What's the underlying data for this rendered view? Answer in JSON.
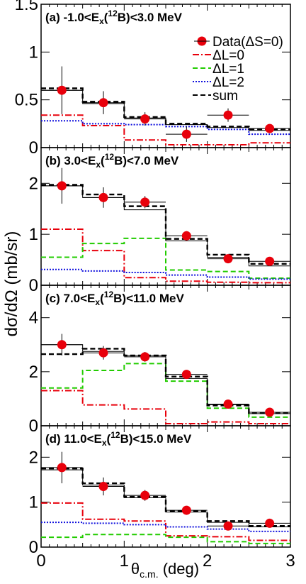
{
  "figure": {
    "ylabel": "dσ/dΩ (mb/sr)",
    "xlabel_main": "θ",
    "xlabel_sub": "c.m.",
    "xlabel_unit": " (deg)",
    "xticks": [
      "0",
      "1",
      "2",
      "3"
    ]
  },
  "legend": {
    "entries": [
      {
        "key": "data",
        "label": "Data(ΔS=0)",
        "color": "#e8000b"
      },
      {
        "key": "L0",
        "label": "ΔL=0",
        "color": "#e8000b"
      },
      {
        "key": "L1",
        "label": "ΔL=1",
        "color": "#22cc00"
      },
      {
        "key": "L2",
        "label": "ΔL=2",
        "color": "#1111dd"
      },
      {
        "key": "sum",
        "label": "sum",
        "color": "#000000"
      }
    ]
  },
  "chart_data": [
    {
      "type": "step",
      "panel_label": "(a) -1.0<Ex(12B)<3.0 MeV",
      "label_parts": [
        "(a) -1.0<E",
        "x",
        "(",
        "12",
        "B)<3.0 MeV"
      ],
      "xlim": [
        0,
        3
      ],
      "ylim": [
        0,
        1.5
      ],
      "yticks": [
        {
          "v": 0,
          "l": "0"
        },
        {
          "v": 0.5,
          "l": "0.5"
        },
        {
          "v": 1,
          "l": "1"
        },
        {
          "v": 1.5,
          "l": "1.5"
        }
      ],
      "bin_edges": [
        0,
        0.5,
        1,
        1.5,
        2,
        2.5,
        3
      ],
      "data": {
        "x": [
          0.25,
          0.75,
          1.25,
          1.75,
          2.25,
          2.75
        ],
        "y": [
          0.6,
          0.47,
          0.3,
          0.14,
          0.34,
          0.2
        ],
        "yerr": [
          0.25,
          0.12,
          0.07,
          0.08,
          0.07,
          0.04
        ]
      },
      "series": [
        {
          "key": "L0",
          "values": [
            0.34,
            0.23,
            0.08,
            0.03,
            0.03,
            0.05
          ]
        },
        {
          "key": "L1",
          "values": [
            0,
            0,
            0,
            0,
            0,
            0
          ]
        },
        {
          "key": "L2",
          "values": [
            0.28,
            0.25,
            0.24,
            0.22,
            0.19,
            0.14
          ]
        },
        {
          "key": "sum",
          "values": [
            0.62,
            0.48,
            0.32,
            0.25,
            0.22,
            0.19
          ]
        }
      ],
      "sum_line": [
        0.6,
        0.46,
        0.31,
        0.24,
        0.21,
        0.18
      ]
    },
    {
      "type": "step",
      "panel_label": "(b) 3.0<Ex(12B)<7.0 MeV",
      "label_parts": [
        "(b)  3.0<E",
        "x",
        "(",
        "12",
        "B)<7.0 MeV"
      ],
      "xlim": [
        0,
        3
      ],
      "ylim": [
        0,
        2.7
      ],
      "yticks": [
        {
          "v": 0,
          "l": "0"
        },
        {
          "v": 1,
          "l": "1"
        },
        {
          "v": 2,
          "l": "2"
        }
      ],
      "bin_edges": [
        0,
        0.5,
        1,
        1.5,
        2,
        2.5,
        3
      ],
      "data": {
        "x": [
          0.25,
          0.75,
          1.25,
          1.75,
          2.25,
          2.75
        ],
        "y": [
          1.95,
          1.72,
          1.63,
          0.97,
          0.52,
          0.47
        ],
        "yerr": [
          0.35,
          0.2,
          0.12,
          0.09,
          0.05,
          0.04
        ]
      },
      "series": [
        {
          "key": "L0",
          "values": [
            1.1,
            0.68,
            0.15,
            0.08,
            0.06,
            0.05
          ]
        },
        {
          "key": "L1",
          "values": [
            0.55,
            0.82,
            0.92,
            0.3,
            0.27,
            0.14
          ]
        },
        {
          "key": "L2",
          "values": [
            0.31,
            0.28,
            0.25,
            0.2,
            0.16,
            0.12
          ]
        },
        {
          "key": "sum",
          "values": [
            1.97,
            1.78,
            1.55,
            0.91,
            0.6,
            0.42
          ]
        }
      ],
      "sum_line": [
        1.95,
        1.72,
        1.48,
        0.87,
        0.55,
        0.38
      ]
    },
    {
      "type": "step",
      "panel_label": "(c) 7.0<Ex(12B)<11.0 MeV",
      "label_parts": [
        "(c)  7.0<E",
        "x",
        "(",
        "12",
        "B)<11.0 MeV"
      ],
      "xlim": [
        0,
        3
      ],
      "ylim": [
        0,
        5.2
      ],
      "yticks": [
        {
          "v": 0,
          "l": "0"
        },
        {
          "v": 2,
          "l": "2"
        },
        {
          "v": 4,
          "l": "4"
        }
      ],
      "bin_edges": [
        0,
        0.5,
        1,
        1.5,
        2,
        2.5,
        3
      ],
      "data": {
        "x": [
          0.25,
          0.75,
          1.25,
          1.75,
          2.25,
          2.75
        ],
        "y": [
          3.0,
          2.7,
          2.55,
          1.9,
          0.8,
          0.5
        ],
        "yerr": [
          0.4,
          0.25,
          0.18,
          0.12,
          0.07,
          0.05
        ]
      },
      "series": [
        {
          "key": "L0",
          "values": [
            1.3,
            0.77,
            0.62,
            0.08,
            0.14,
            0.08
          ]
        },
        {
          "key": "L1",
          "values": [
            1.4,
            2.05,
            2.3,
            1.65,
            0.65,
            0.32
          ]
        },
        {
          "key": "L2",
          "values": [
            0,
            0,
            0,
            0,
            0,
            0
          ]
        },
        {
          "key": "sum",
          "values": [
            2.65,
            2.85,
            2.6,
            1.82,
            0.75,
            0.47
          ]
        }
      ],
      "sum_line": [
        3.0,
        2.75,
        2.6,
        1.75,
        0.78,
        0.45
      ]
    },
    {
      "type": "step",
      "panel_label": "(d) 11.0<Ex(12B)<15.0 MeV",
      "label_parts": [
        "(d)  11.0<E",
        "x",
        "(",
        "12",
        "B)<15.0 MeV"
      ],
      "xlim": [
        0,
        3
      ],
      "ylim": [
        0,
        2.7
      ],
      "yticks": [
        {
          "v": 0,
          "l": "0"
        },
        {
          "v": 1,
          "l": "1"
        },
        {
          "v": 2,
          "l": "2"
        }
      ],
      "bin_edges": [
        0,
        0.5,
        1,
        1.5,
        2,
        2.5,
        3
      ],
      "data": {
        "x": [
          0.25,
          0.75,
          1.25,
          1.75,
          2.25,
          2.75
        ],
        "y": [
          1.77,
          1.35,
          1.15,
          0.82,
          0.47,
          0.53
        ],
        "yerr": [
          0.35,
          0.2,
          0.12,
          0.09,
          0.05,
          0.05
        ]
      },
      "series": [
        {
          "key": "L0",
          "values": [
            0.98,
            0.62,
            0.58,
            0.25,
            0.23,
            0.15
          ]
        },
        {
          "key": "L1",
          "values": [
            0.22,
            0.28,
            0.28,
            0.22,
            0.12,
            0.08
          ]
        },
        {
          "key": "L2",
          "values": [
            0.55,
            0.53,
            0.5,
            0.45,
            0.4,
            0.35
          ]
        },
        {
          "key": "sum",
          "values": [
            1.75,
            1.42,
            1.12,
            0.8,
            0.58,
            0.47
          ]
        }
      ],
      "sum_line": [
        1.72,
        1.38,
        1.1,
        0.78,
        0.55,
        0.45
      ]
    }
  ]
}
